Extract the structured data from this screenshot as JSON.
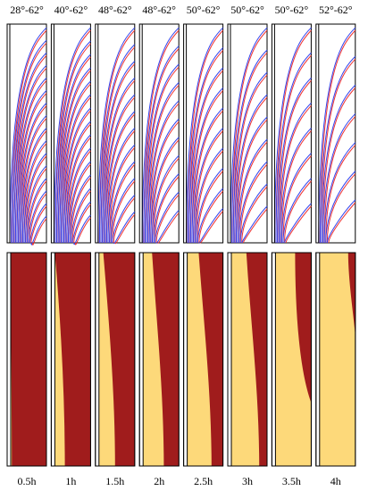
{
  "columns": [
    {
      "angle": "28°-62°",
      "time": "0.5h"
    },
    {
      "angle": "40°-62°",
      "time": "1h"
    },
    {
      "angle": "48°-62°",
      "time": "1.5h"
    },
    {
      "angle": "48°-62°",
      "time": "2h"
    },
    {
      "angle": "50°-62°",
      "time": "2.5h"
    },
    {
      "angle": "50°-62°",
      "time": "3h"
    },
    {
      "angle": "50°-62°",
      "time": "3.5h"
    },
    {
      "angle": "52°-62°",
      "time": "4h"
    }
  ]
}
